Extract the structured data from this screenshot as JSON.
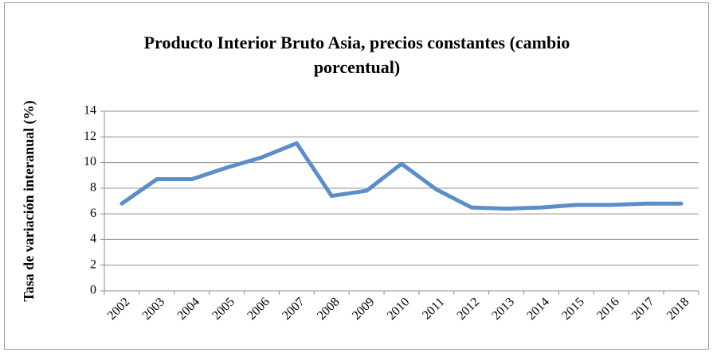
{
  "chart_data": {
    "type": "line",
    "title": "Producto Interior Bruto Asia, precios constantes (cambio porcentual)",
    "y_label": "Tasa de variación interanual (%)",
    "categories": [
      "2002",
      "2003",
      "2004",
      "2005",
      "2006",
      "2007",
      "2008",
      "2009",
      "2010",
      "2011",
      "2012",
      "2013",
      "2014",
      "2015",
      "2016",
      "2017",
      "2018"
    ],
    "series": [
      {
        "name": "Asia",
        "color": "#5b8ec8",
        "values": [
          6.8,
          8.7,
          8.7,
          9.6,
          10.4,
          11.5,
          7.4,
          7.8,
          9.9,
          7.9,
          6.5,
          6.4,
          6.5,
          6.7,
          6.7,
          6.8,
          6.8
        ]
      }
    ],
    "ylim": [
      0,
      14
    ],
    "yticks": [
      0,
      2,
      4,
      6,
      8,
      10,
      12,
      14
    ],
    "grid": true
  }
}
